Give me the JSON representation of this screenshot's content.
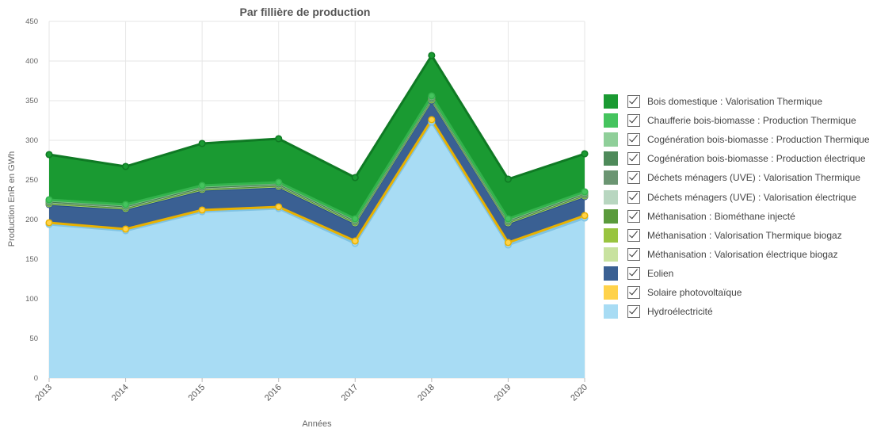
{
  "chart_data": {
    "type": "area",
    "stacked": true,
    "title": "Par fillière de production",
    "xlabel": "Années",
    "ylabel": "Production EnR en GWh",
    "ylim": [
      0,
      450
    ],
    "yticks": [
      "0",
      "50",
      "100",
      "150",
      "200",
      "250",
      "300",
      "350",
      "400",
      "450"
    ],
    "categories": [
      "2013",
      "2014",
      "2015",
      "2016",
      "2017",
      "2018",
      "2019",
      "2020"
    ],
    "grid": true,
    "legend_position": "right",
    "series": [
      {
        "name": "Hydroélectricité",
        "color": "#a8dcf4",
        "line": "#7fc3e4",
        "values": [
          194,
          186,
          210,
          214,
          170,
          323,
          168,
          202
        ]
      },
      {
        "name": "Solaire photovoltaïque",
        "color": "#ffd24a",
        "line": "#e8b100",
        "values": [
          2,
          2,
          2,
          2,
          3,
          3,
          3,
          3
        ]
      },
      {
        "name": "Eolien",
        "color": "#3a6093",
        "line": "#1f4b8a",
        "values": [
          23,
          25,
          25,
          25,
          22,
          24,
          24,
          24
        ]
      },
      {
        "name": "Méthanisation : Valorisation électrique biogaz",
        "color": "#c8e29f",
        "line": "#a9d06a",
        "values": [
          1,
          1,
          1,
          1,
          1,
          1,
          1,
          1
        ]
      },
      {
        "name": "Méthanisation : Valorisation Thermique biogaz",
        "color": "#99c43f",
        "line": "#87b52f",
        "values": [
          1,
          1,
          1,
          1,
          1,
          1,
          1,
          1
        ]
      },
      {
        "name": "Méthanisation : Biométhane injecté",
        "color": "#5a9a3c",
        "line": "#4b8a2e",
        "values": [
          0,
          0,
          0,
          0,
          0,
          0,
          0,
          0
        ]
      },
      {
        "name": "Déchets ménagers (UVE) : Valorisation électrique",
        "color": "#b8d6c0",
        "line": "#9cc4a6",
        "values": [
          1,
          1,
          1,
          1,
          1,
          1,
          1,
          1
        ]
      },
      {
        "name": "Déchets ménagers (UVE) : Valorisation Thermique",
        "color": "#6b9572",
        "line": "#5a8562",
        "values": [
          1,
          1,
          1,
          1,
          1,
          1,
          1,
          1
        ]
      },
      {
        "name": "Cogénération bois-biomasse : Production électrique",
        "color": "#4e8a5a",
        "line": "#3f7a4c",
        "values": [
          0,
          0,
          0,
          0,
          0,
          0,
          0,
          0
        ]
      },
      {
        "name": "Cogénération bois-biomasse : Production Thermique",
        "color": "#8fcf99",
        "line": "#79c185",
        "values": [
          1,
          1,
          1,
          1,
          1,
          1,
          1,
          1
        ]
      },
      {
        "name": "Chaufferie bois-biomasse : Production Thermique",
        "color": "#45c45e",
        "line": "#33b34c",
        "values": [
          1,
          1,
          1,
          1,
          1,
          1,
          1,
          1
        ]
      },
      {
        "name": "Bois domestique : Valorisation Thermique",
        "color": "#1a9a32",
        "line": "#0f7a24",
        "values": [
          57,
          48,
          53,
          55,
          52,
          51,
          50,
          48
        ]
      }
    ]
  },
  "legend": {
    "items": [
      {
        "label": "Bois domestique : Valorisation Thermique",
        "color": "#1a9a32",
        "checked": true
      },
      {
        "label": "Chaufferie bois-biomasse : Production Thermique",
        "color": "#45c45e",
        "checked": true
      },
      {
        "label": "Cogénération bois-biomasse : Production Thermique",
        "color": "#8fcf99",
        "checked": true
      },
      {
        "label": "Cogénération bois-biomasse : Production électrique",
        "color": "#4e8a5a",
        "checked": true
      },
      {
        "label": "Déchets ménagers (UVE) : Valorisation Thermique",
        "color": "#6b9572",
        "checked": true
      },
      {
        "label": "Déchets ménagers (UVE) : Valorisation électrique",
        "color": "#b8d6c0",
        "checked": true
      },
      {
        "label": "Méthanisation : Biométhane injecté",
        "color": "#5a9a3c",
        "checked": true
      },
      {
        "label": "Méthanisation : Valorisation Thermique biogaz",
        "color": "#99c43f",
        "checked": true
      },
      {
        "label": "Méthanisation : Valorisation électrique biogaz",
        "color": "#c8e29f",
        "checked": true
      },
      {
        "label": "Eolien",
        "color": "#3a6093",
        "checked": true
      },
      {
        "label": "Solaire photovoltaïque",
        "color": "#ffd24a",
        "checked": true
      },
      {
        "label": "Hydroélectricité",
        "color": "#a8dcf4",
        "checked": true
      }
    ]
  }
}
